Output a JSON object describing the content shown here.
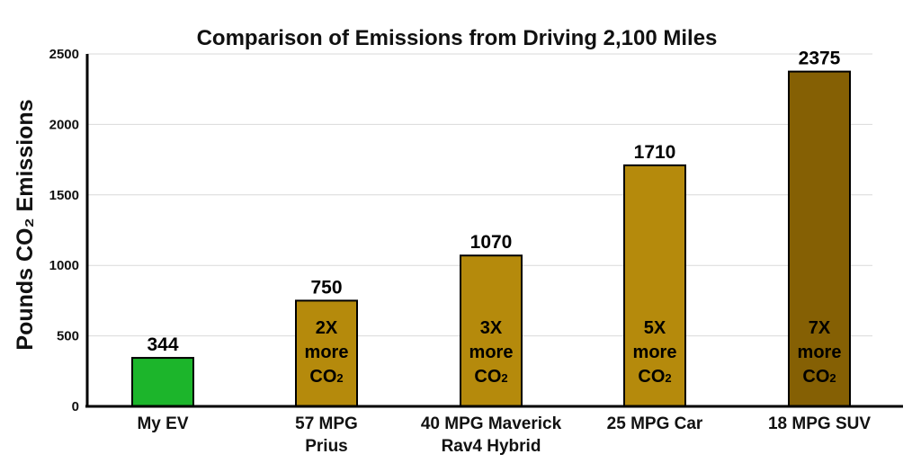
{
  "chart_data": {
    "type": "bar",
    "title": "Comparison of Emissions from Driving 2,100 Miles",
    "ylabel": "Pounds CO₂ Emissions",
    "xlabel": "",
    "ylim": [
      0,
      2500
    ],
    "yticks": [
      0,
      500,
      1000,
      1500,
      2000,
      2500
    ],
    "grid": true,
    "categories": [
      [
        "My EV"
      ],
      [
        "57 MPG",
        "Prius"
      ],
      [
        "40 MPG Maverick",
        "Rav4 Hybrid"
      ],
      [
        "25 MPG Car"
      ],
      [
        "18 MPG SUV"
      ]
    ],
    "values": [
      344,
      750,
      1070,
      1710,
      2375
    ],
    "data_labels": [
      "344",
      "750",
      "1070",
      "1710",
      "2375"
    ],
    "annotations": [
      null,
      [
        "2X",
        "more",
        "CO₂"
      ],
      [
        "3X",
        "more",
        "CO₂"
      ],
      [
        "5X",
        "more",
        "CO₂"
      ],
      [
        "7X",
        "more",
        "CO₂"
      ]
    ],
    "colors": [
      "#1cb52b",
      "#b58a0c",
      "#b58a0c",
      "#b58a0c",
      "#856004"
    ]
  }
}
